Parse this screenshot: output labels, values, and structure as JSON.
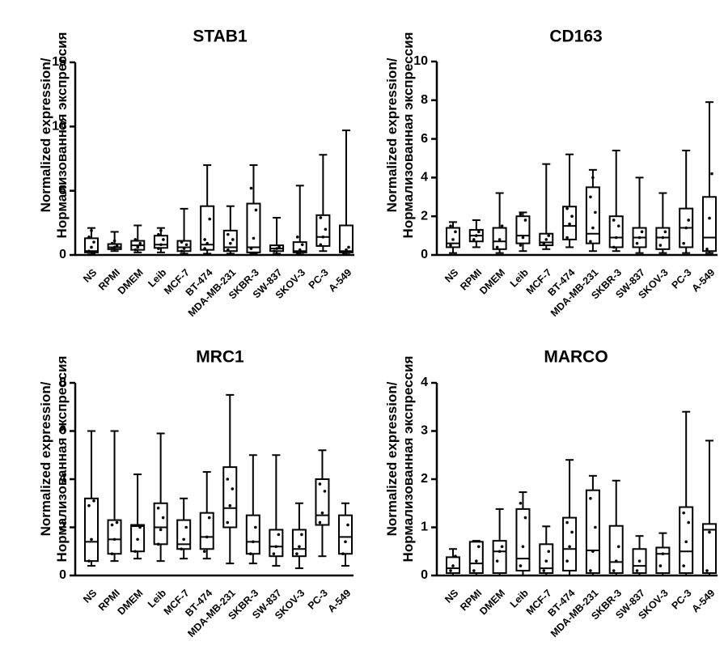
{
  "figure": {
    "ylabel_line1": "Normalized expression/",
    "ylabel_line2": "Нормализованная экспрессия"
  },
  "chart_data": [
    {
      "type": "box",
      "title": "STAB1",
      "ylim": [
        0,
        15
      ],
      "yticks": [
        0,
        5,
        10,
        15
      ],
      "categories": [
        "NS",
        "RPMI",
        "DMEM",
        "Leib",
        "MCF-7",
        "BT-474",
        "MDA-MB-231",
        "SKBR-3",
        "SW-837",
        "SKOV-3",
        "PC-3",
        "A-549"
      ],
      "boxes": [
        {
          "min": 0.05,
          "q1": 0.2,
          "median": 0.3,
          "q3": 1.3,
          "max": 2.1,
          "points": [
            0.3,
            0.6,
            1.0,
            1.4,
            1.9,
            0.1
          ]
        },
        {
          "min": 0.3,
          "q1": 0.45,
          "median": 0.6,
          "q3": 0.85,
          "max": 1.8,
          "points": [
            0.5,
            0.6,
            0.7,
            0.9,
            1.1
          ]
        },
        {
          "min": 0.2,
          "q1": 0.4,
          "median": 0.75,
          "q3": 1.1,
          "max": 2.3,
          "points": [
            0.4,
            0.7,
            0.9,
            1.2,
            0.6
          ]
        },
        {
          "min": 0.2,
          "q1": 0.55,
          "median": 0.8,
          "q3": 1.5,
          "max": 2.1,
          "points": [
            0.5,
            0.8,
            1.2,
            1.6,
            1.9
          ]
        },
        {
          "min": 0.1,
          "q1": 0.3,
          "median": 0.6,
          "q3": 1.1,
          "max": 3.6,
          "points": [
            0.3,
            0.5,
            0.8,
            1.0
          ]
        },
        {
          "min": 0.1,
          "q1": 0.4,
          "median": 0.8,
          "q3": 3.8,
          "max": 7.0,
          "points": [
            0.5,
            0.9,
            2.8,
            1.2
          ]
        },
        {
          "min": 0.1,
          "q1": 0.3,
          "median": 0.6,
          "q3": 1.9,
          "max": 3.8,
          "points": [
            0.4,
            0.9,
            1.2,
            1.6
          ]
        },
        {
          "min": 0.1,
          "q1": 0.2,
          "median": 0.6,
          "q3": 4.0,
          "max": 7.0,
          "points": [
            0.5,
            1.3,
            3.5,
            5.2
          ]
        },
        {
          "min": 0.1,
          "q1": 0.3,
          "median": 0.5,
          "q3": 0.75,
          "max": 2.9,
          "points": [
            0.3,
            0.5,
            0.6
          ]
        },
        {
          "min": 0.05,
          "q1": 0.2,
          "median": 0.3,
          "q3": 1.0,
          "max": 5.4,
          "points": [
            0.2,
            0.4,
            0.8,
            1.4
          ]
        },
        {
          "min": 0.3,
          "q1": 0.7,
          "median": 1.4,
          "q3": 3.1,
          "max": 7.8,
          "points": [
            0.8,
            1.4,
            2.0,
            2.9
          ]
        },
        {
          "min": 0.05,
          "q1": 0.2,
          "median": 0.3,
          "q3": 2.3,
          "max": 9.7,
          "points": [
            0.2,
            0.4,
            0.6
          ]
        }
      ]
    },
    {
      "type": "box",
      "title": "CD163",
      "ylim": [
        0,
        10
      ],
      "yticks": [
        0,
        2,
        4,
        6,
        8,
        10
      ],
      "categories": [
        "NS",
        "RPMI",
        "DMEM",
        "Leib",
        "MCF-7",
        "BT-474",
        "MDA-MB-231",
        "SKBR-3",
        "SW-837",
        "SKOV-3",
        "PC-3",
        "A-549"
      ],
      "boxes": [
        {
          "min": 0.1,
          "q1": 0.4,
          "median": 0.6,
          "q3": 1.4,
          "max": 1.7,
          "points": [
            0.5,
            0.8,
            1.2,
            1.5
          ]
        },
        {
          "min": 0.4,
          "q1": 0.7,
          "median": 1.0,
          "q3": 1.3,
          "max": 1.8,
          "points": [
            0.8,
            1.0,
            1.2
          ]
        },
        {
          "min": 0.1,
          "q1": 0.3,
          "median": 0.7,
          "q3": 1.4,
          "max": 3.2,
          "points": [
            0.4,
            0.8,
            1.5
          ]
        },
        {
          "min": 0.2,
          "q1": 0.6,
          "median": 1.0,
          "q3": 2.0,
          "max": 2.2,
          "points": [
            0.5,
            0.9,
            1.8,
            2.1
          ]
        },
        {
          "min": 0.3,
          "q1": 0.5,
          "median": 0.65,
          "q3": 1.1,
          "max": 4.7,
          "points": [
            0.6,
            0.8,
            1.0
          ]
        },
        {
          "min": 0.4,
          "q1": 0.8,
          "median": 1.5,
          "q3": 2.5,
          "max": 5.2,
          "points": [
            0.9,
            1.6,
            2.0,
            2.4
          ]
        },
        {
          "min": 0.2,
          "q1": 0.6,
          "median": 1.1,
          "q3": 3.5,
          "max": 4.4,
          "points": [
            0.7,
            1.4,
            2.2,
            3.0,
            4.0
          ]
        },
        {
          "min": 0.2,
          "q1": 0.4,
          "median": 0.9,
          "q3": 2.0,
          "max": 5.4,
          "points": [
            0.4,
            0.9,
            1.5,
            1.8
          ]
        },
        {
          "min": 0.1,
          "q1": 0.4,
          "median": 0.9,
          "q3": 1.4,
          "max": 4.0,
          "points": [
            0.6,
            0.9,
            1.2
          ]
        },
        {
          "min": 0.1,
          "q1": 0.3,
          "median": 0.9,
          "q3": 1.4,
          "max": 3.2,
          "points": [
            0.5,
            0.9,
            1.2
          ]
        },
        {
          "min": 0.1,
          "q1": 0.4,
          "median": 1.4,
          "q3": 2.4,
          "max": 5.4,
          "points": [
            0.6,
            1.4,
            1.8
          ]
        },
        {
          "min": 0.1,
          "q1": 0.2,
          "median": 0.9,
          "q3": 3.0,
          "max": 7.9,
          "points": [
            0.3,
            1.9,
            4.2
          ]
        }
      ]
    },
    {
      "type": "box",
      "title": "MRC1",
      "ylim": [
        0,
        8
      ],
      "yticks": [
        0,
        2,
        4,
        6,
        8
      ],
      "categories": [
        "NS",
        "RPMI",
        "DMEM",
        "Leib",
        "MCF-7",
        "BT-474",
        "MDA-MB-231",
        "SKBR-3",
        "SW-837",
        "SKOV-3",
        "PC-3",
        "A-549"
      ],
      "boxes": [
        {
          "min": 0.4,
          "q1": 0.6,
          "median": 1.4,
          "q3": 3.2,
          "max": 6.0,
          "points": [
            0.6,
            1.5,
            3.1,
            2.9
          ]
        },
        {
          "min": 0.6,
          "q1": 0.9,
          "median": 1.5,
          "q3": 2.3,
          "max": 6.0,
          "points": [
            0.9,
            1.5,
            2.2,
            2.1
          ]
        },
        {
          "min": 0.7,
          "q1": 1.0,
          "median": 2.05,
          "q3": 2.1,
          "max": 4.2,
          "points": [
            1.0,
            1.5,
            2.0
          ]
        },
        {
          "min": 0.6,
          "q1": 1.3,
          "median": 2.0,
          "q3": 3.0,
          "max": 5.9,
          "points": [
            1.3,
            1.9,
            2.4,
            2.8
          ]
        },
        {
          "min": 0.7,
          "q1": 1.1,
          "median": 1.3,
          "q3": 2.3,
          "max": 3.2,
          "points": [
            1.1,
            1.5,
            2.0
          ]
        },
        {
          "min": 0.7,
          "q1": 1.1,
          "median": 1.6,
          "q3": 2.6,
          "max": 4.3,
          "points": [
            1.0,
            1.6,
            2.4
          ]
        },
        {
          "min": 0.5,
          "q1": 2.0,
          "median": 2.8,
          "q3": 4.5,
          "max": 7.5,
          "points": [
            2.2,
            2.9,
            3.6,
            4.0
          ]
        },
        {
          "min": 0.5,
          "q1": 0.9,
          "median": 1.4,
          "q3": 2.5,
          "max": 5.0,
          "points": [
            0.9,
            1.4,
            2.0
          ]
        },
        {
          "min": 0.4,
          "q1": 0.8,
          "median": 1.2,
          "q3": 1.9,
          "max": 5.0,
          "points": [
            0.9,
            1.2,
            1.7
          ]
        },
        {
          "min": 0.3,
          "q1": 0.8,
          "median": 1.1,
          "q3": 1.9,
          "max": 3.0,
          "points": [
            0.9,
            1.2,
            1.7
          ]
        },
        {
          "min": 0.8,
          "q1": 2.1,
          "median": 2.5,
          "q3": 4.0,
          "max": 5.2,
          "points": [
            2.2,
            2.6,
            3.5,
            3.8
          ]
        },
        {
          "min": 0.4,
          "q1": 0.9,
          "median": 1.6,
          "q3": 2.5,
          "max": 3.0,
          "points": [
            0.9,
            1.4,
            2.1
          ]
        }
      ]
    },
    {
      "type": "box",
      "title": "MARCO",
      "ylim": [
        0,
        4
      ],
      "yticks": [
        0,
        1,
        2,
        3,
        4
      ],
      "categories": [
        "NS",
        "RPMI",
        "DMEM",
        "Leib",
        "MCF-7",
        "BT-474",
        "MDA-MB-231",
        "SKBR-3",
        "SW-837",
        "SKOV-3",
        "PC-3",
        "A-549"
      ],
      "boxes": [
        {
          "min": 0.0,
          "q1": 0.05,
          "median": 0.15,
          "q3": 0.38,
          "max": 0.55,
          "points": [
            0.1,
            0.2,
            0.4
          ]
        },
        {
          "min": 0.0,
          "q1": 0.05,
          "median": 0.25,
          "q3": 0.7,
          "max": 0.72,
          "points": [
            0.1,
            0.3,
            0.6
          ]
        },
        {
          "min": 0.0,
          "q1": 0.05,
          "median": 0.5,
          "q3": 0.72,
          "max": 1.38,
          "points": [
            0.3,
            0.5,
            0.6
          ]
        },
        {
          "min": 0.0,
          "q1": 0.1,
          "median": 0.35,
          "q3": 1.38,
          "max": 1.73,
          "points": [
            0.2,
            0.6,
            1.2,
            1.5
          ]
        },
        {
          "min": 0.0,
          "q1": 0.05,
          "median": 0.15,
          "q3": 0.65,
          "max": 1.02,
          "points": [
            0.1,
            0.3,
            0.5
          ]
        },
        {
          "min": 0.0,
          "q1": 0.1,
          "median": 0.55,
          "q3": 1.2,
          "max": 2.4,
          "points": [
            0.3,
            0.6,
            0.9,
            1.1
          ]
        },
        {
          "min": 0.0,
          "q1": 0.05,
          "median": 0.52,
          "q3": 1.77,
          "max": 2.07,
          "points": [
            0.1,
            0.5,
            1.0,
            1.6
          ]
        },
        {
          "min": 0.0,
          "q1": 0.05,
          "median": 0.28,
          "q3": 1.03,
          "max": 1.97,
          "points": [
            0.1,
            0.3,
            0.6
          ]
        },
        {
          "min": 0.0,
          "q1": 0.05,
          "median": 0.2,
          "q3": 0.55,
          "max": 0.82,
          "points": [
            0.1,
            0.3
          ]
        },
        {
          "min": 0.0,
          "q1": 0.05,
          "median": 0.45,
          "q3": 0.58,
          "max": 0.88,
          "points": [
            0.2,
            0.45
          ]
        },
        {
          "min": 0.0,
          "q1": 0.05,
          "median": 0.5,
          "q3": 1.42,
          "max": 3.4,
          "points": [
            0.2,
            0.7,
            1.1,
            1.3
          ]
        },
        {
          "min": 0.0,
          "q1": 0.05,
          "median": 0.95,
          "q3": 1.07,
          "max": 2.8,
          "points": [
            0.1,
            0.9
          ]
        }
      ]
    }
  ]
}
